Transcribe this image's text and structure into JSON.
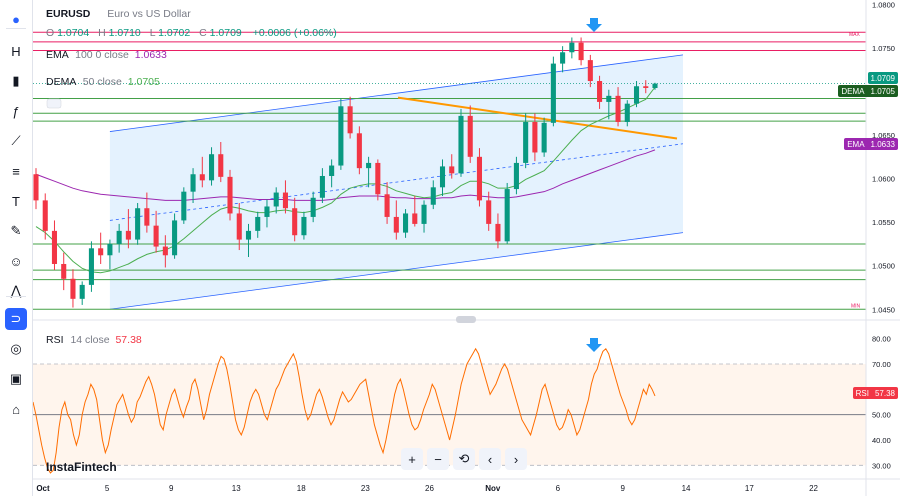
{
  "legend": {
    "symbol": "EURUSD",
    "description": "Euro vs US Dollar",
    "ohlc": [
      {
        "key": "O",
        "value": "1.0704"
      },
      {
        "key": "H",
        "value": "1.0710"
      },
      {
        "key": "L",
        "value": "1.0702"
      },
      {
        "key": "C",
        "value": "1.0709"
      }
    ],
    "change": "+0.0006 (+0.06%)",
    "ema_label": "EMA",
    "ema_params": "100 0 close",
    "ema_value": "1.0633",
    "dema_label": "DEMA",
    "dema_params": "50 close",
    "dema_value": "1.0705"
  },
  "rsi_legend": {
    "label": "RSI",
    "params": "14 close",
    "value": "57.38"
  },
  "watermark": "InstaFintech",
  "markers": {
    "max": "MAX",
    "min": "MIN"
  },
  "toolbar_icons": [
    "logo-icon",
    "text-h-icon",
    "bars-icon",
    "fx-icon",
    "line-tool-icon",
    "fib-icon",
    "text-icon",
    "brush-icon",
    "emoji-icon",
    "pattern-icon",
    "magnet-icon",
    "eye-icon",
    "lock-icon",
    "trash-icon"
  ],
  "navbar": [
    "+",
    "−",
    "⟲",
    "‹",
    "›"
  ],
  "colors": {
    "up": "#089981",
    "down": "#f23645",
    "ema": "#9c27b0",
    "dema": "#4caf50",
    "channel": "#2962ff",
    "trendline": "#ff9800",
    "hline": "#43a047",
    "maxmin": "#e91e63",
    "rsi": "#ff6d00",
    "arrow": "#2196f3"
  },
  "chart_data": [
    {
      "type": "candlestick",
      "title": "EURUSD",
      "ylim": [
        1.044,
        1.0805
      ],
      "y_ticks": [
        "1.0800",
        "1.0750",
        "1.0700",
        "1.0650",
        "1.0600",
        "1.0550",
        "1.0500",
        "1.0450"
      ],
      "x_ticks": [
        "Oct",
        "5",
        "9",
        "13",
        "18",
        "23",
        "26",
        "Nov",
        "6",
        "9",
        "14",
        "17",
        "22"
      ],
      "last_price_label": "1.0709",
      "dema_label": "DEMA",
      "dema_price": "1.0705",
      "ema_label": "EMA",
      "ema_price": "1.0633",
      "horizontal_levels": [
        1.0768,
        1.0757,
        1.0747,
        1.0692,
        1.0675,
        1.0666,
        1.0525,
        1.0495,
        1.0484,
        1.045
      ],
      "max_level": 1.0768,
      "min_level": 1.045,
      "channel": {
        "upper": [
          1.0654,
          1.0742
        ],
        "middle": [
          1.0552,
          1.064
        ],
        "lower": [
          1.045,
          1.0538
        ]
      },
      "trendline": [
        1.0693,
        1.0646
      ],
      "ohlc": [
        [
          1.0605,
          1.0612,
          1.0565,
          1.0575
        ],
        [
          1.0575,
          1.0583,
          1.053,
          1.054
        ],
        [
          1.054,
          1.0552,
          1.0495,
          1.0502
        ],
        [
          1.0502,
          1.0515,
          1.0472,
          1.0485
        ],
        [
          1.0485,
          1.0496,
          1.0452,
          1.0462
        ],
        [
          1.0462,
          1.0482,
          1.0455,
          1.0478
        ],
        [
          1.0478,
          1.0528,
          1.047,
          1.052
        ],
        [
          1.052,
          1.0538,
          1.0502,
          1.0512
        ],
        [
          1.0512,
          1.053,
          1.0496,
          1.0525
        ],
        [
          1.0525,
          1.0548,
          1.0515,
          1.054
        ],
        [
          1.054,
          1.0565,
          1.052,
          1.053
        ],
        [
          1.053,
          1.0572,
          1.0524,
          1.0566
        ],
        [
          1.0566,
          1.0584,
          1.0538,
          1.0546
        ],
        [
          1.0546,
          1.0563,
          1.0515,
          1.0522
        ],
        [
          1.0522,
          1.0535,
          1.0498,
          1.0512
        ],
        [
          1.0512,
          1.056,
          1.0508,
          1.0552
        ],
        [
          1.0552,
          1.059,
          1.0548,
          1.0585
        ],
        [
          1.0585,
          1.0612,
          1.0572,
          1.0605
        ],
        [
          1.0605,
          1.0625,
          1.059,
          1.0598
        ],
        [
          1.0598,
          1.0636,
          1.0592,
          1.0628
        ],
        [
          1.0628,
          1.0642,
          1.0596,
          1.0602
        ],
        [
          1.0602,
          1.061,
          1.0552,
          1.056
        ],
        [
          1.056,
          1.0572,
          1.0518,
          1.053
        ],
        [
          1.053,
          1.0548,
          1.051,
          1.054
        ],
        [
          1.054,
          1.0562,
          1.0532,
          1.0556
        ],
        [
          1.0556,
          1.0576,
          1.0544,
          1.0568
        ],
        [
          1.0568,
          1.059,
          1.056,
          1.0584
        ],
        [
          1.0584,
          1.0598,
          1.056,
          1.0566
        ],
        [
          1.0566,
          1.0578,
          1.0528,
          1.0535
        ],
        [
          1.0535,
          1.0562,
          1.053,
          1.0556
        ],
        [
          1.0556,
          1.0585,
          1.055,
          1.0578
        ],
        [
          1.0578,
          1.0612,
          1.0572,
          1.0603
        ],
        [
          1.0603,
          1.0622,
          1.059,
          1.0615
        ],
        [
          1.0615,
          1.0692,
          1.061,
          1.0683
        ],
        [
          1.0683,
          1.0694,
          1.0646,
          1.0652
        ],
        [
          1.0652,
          1.066,
          1.0605,
          1.0612
        ],
        [
          1.0612,
          1.0625,
          1.059,
          1.0618
        ],
        [
          1.0618,
          1.0622,
          1.0575,
          1.0582
        ],
        [
          1.0582,
          1.0596,
          1.0548,
          1.0556
        ],
        [
          1.0556,
          1.0575,
          1.053,
          1.0538
        ],
        [
          1.0538,
          1.0565,
          1.0532,
          1.056
        ],
        [
          1.056,
          1.058,
          1.0545,
          1.0548
        ],
        [
          1.0548,
          1.0575,
          1.0538,
          1.057
        ],
        [
          1.057,
          1.0598,
          1.0565,
          1.059
        ],
        [
          1.059,
          1.0622,
          1.058,
          1.0614
        ],
        [
          1.0614,
          1.0628,
          1.06,
          1.0606
        ],
        [
          1.0606,
          1.068,
          1.0602,
          1.0672
        ],
        [
          1.0672,
          1.0684,
          1.0618,
          1.0625
        ],
        [
          1.0625,
          1.0635,
          1.0568,
          1.0575
        ],
        [
          1.0575,
          1.0585,
          1.054,
          1.0548
        ],
        [
          1.0548,
          1.056,
          1.052,
          1.0528
        ],
        [
          1.0528,
          1.0595,
          1.0525,
          1.0588
        ],
        [
          1.0588,
          1.0625,
          1.0582,
          1.0618
        ],
        [
          1.0618,
          1.0675,
          1.0612,
          1.0665
        ],
        [
          1.0665,
          1.0675,
          1.062,
          1.063
        ],
        [
          1.063,
          1.067,
          1.0625,
          1.0664
        ],
        [
          1.0664,
          1.074,
          1.066,
          1.0732
        ],
        [
          1.0732,
          1.0752,
          1.0722,
          1.0745
        ],
        [
          1.0745,
          1.0762,
          1.0738,
          1.0756
        ],
        [
          1.0756,
          1.0762,
          1.073,
          1.0736
        ],
        [
          1.0736,
          1.0742,
          1.0705,
          1.0712
        ],
        [
          1.0712,
          1.0718,
          1.068,
          1.0688
        ],
        [
          1.0688,
          1.0702,
          1.0668,
          1.0695
        ],
        [
          1.0695,
          1.0705,
          1.066,
          1.0665
        ],
        [
          1.0665,
          1.069,
          1.066,
          1.0686
        ],
        [
          1.0686,
          1.0712,
          1.0682,
          1.0706
        ],
        [
          1.0706,
          1.0713,
          1.0698,
          1.0704
        ],
        [
          1.0704,
          1.071,
          1.0702,
          1.0709
        ]
      ],
      "ema_100": [
        1.0605,
        1.0601,
        1.0597,
        1.0593,
        1.0589,
        1.0586,
        1.0584,
        1.0582,
        1.0581,
        1.058,
        1.0579,
        1.0578,
        1.0577,
        1.0576,
        1.0575,
        1.0575,
        1.0575,
        1.0576,
        1.0577,
        1.0578,
        1.0579,
        1.0579,
        1.0578,
        1.0577,
        1.0576,
        1.0576,
        1.0576,
        1.0576,
        1.0575,
        1.0575,
        1.0575,
        1.0575,
        1.0576,
        1.0578,
        1.0579,
        1.058,
        1.058,
        1.058,
        1.0579,
        1.0578,
        1.0578,
        1.0577,
        1.0577,
        1.0577,
        1.0578,
        1.0578,
        1.058,
        1.0581,
        1.058,
        1.0579,
        1.0578,
        1.0578,
        1.0579,
        1.0581,
        1.0583,
        1.0585,
        1.0589,
        1.0594,
        1.0598,
        1.0602,
        1.0606,
        1.061,
        1.0614,
        1.0618,
        1.0622,
        1.0626,
        1.0629,
        1.0633
      ],
      "dema_50": [
        1.0545,
        1.0538,
        1.0528,
        1.0516,
        1.0505,
        1.0497,
        1.0493,
        1.0492,
        1.0494,
        1.0498,
        1.0502,
        1.0508,
        1.0513,
        1.0516,
        1.0518,
        1.0523,
        1.0531,
        1.054,
        1.0549,
        1.0558,
        1.0565,
        1.0568,
        1.0566,
        1.0563,
        1.0561,
        1.0561,
        1.0563,
        1.0564,
        1.0562,
        1.0561,
        1.0563,
        1.0567,
        1.0572,
        1.0582,
        1.0589,
        1.0592,
        1.0594,
        1.0594,
        1.0591,
        1.0586,
        1.0583,
        1.058,
        1.0578,
        1.0579,
        1.0582,
        1.0584,
        1.0592,
        1.0597,
        1.0597,
        1.0594,
        1.0589,
        1.0589,
        1.0592,
        1.0599,
        1.0604,
        1.0609,
        1.062,
        1.0632,
        1.0644,
        1.0655,
        1.0662,
        1.0667,
        1.0672,
        1.0676,
        1.0681,
        1.0686,
        1.0691,
        1.0705
      ]
    },
    {
      "type": "line",
      "title": "RSI",
      "ylim": [
        25,
        85
      ],
      "y_ticks": [
        "80.00",
        "70.00",
        "60.00",
        "50.00",
        "40.00",
        "30.00"
      ],
      "bands": [
        30,
        70
      ],
      "midline": 50,
      "last_value_label": "57.38",
      "values": [
        55,
        50,
        44,
        38,
        33,
        29,
        27,
        28,
        35,
        45,
        52,
        55,
        50,
        48,
        42,
        38,
        42,
        50,
        55,
        58,
        62,
        60,
        56,
        48,
        40,
        35,
        38,
        44,
        49,
        54,
        56,
        58,
        54,
        50,
        47,
        49,
        55,
        57,
        60,
        63,
        65,
        62,
        58,
        52,
        46,
        44,
        50,
        54,
        58,
        60,
        56,
        52,
        49,
        53,
        56,
        62,
        64,
        60,
        54,
        48,
        52,
        58,
        62,
        66,
        70,
        73,
        72,
        68,
        62,
        55,
        48,
        44,
        42,
        45,
        50,
        55,
        58,
        60,
        58,
        54,
        50,
        48,
        52,
        56,
        60,
        62,
        65,
        68,
        70,
        72,
        74,
        71,
        65,
        58,
        52,
        48,
        50,
        54,
        58,
        60,
        57,
        53,
        49,
        46,
        48,
        52,
        56,
        59,
        57,
        55,
        56,
        58,
        60,
        62,
        63,
        64,
        58,
        52,
        46,
        42,
        38,
        35,
        40,
        46,
        52,
        58,
        62,
        64,
        60,
        55,
        50,
        46,
        44,
        45,
        48,
        52,
        55,
        58,
        62,
        60,
        56,
        52,
        48,
        44,
        40,
        45,
        50,
        56,
        62,
        66,
        70,
        72,
        74,
        76,
        74,
        70,
        66,
        62,
        58,
        60,
        62,
        65,
        68,
        70,
        68,
        64,
        60,
        56,
        52,
        48,
        46,
        44,
        42,
        46,
        50,
        55,
        60,
        62,
        58,
        54,
        50,
        46,
        44,
        45,
        48,
        52,
        50,
        46,
        42,
        44,
        48,
        52,
        56,
        62,
        66,
        68,
        72,
        75,
        76,
        74,
        70,
        66,
        62,
        58,
        55,
        52,
        48,
        46,
        48,
        52,
        56,
        60,
        58,
        62,
        60,
        57.4
      ]
    }
  ]
}
